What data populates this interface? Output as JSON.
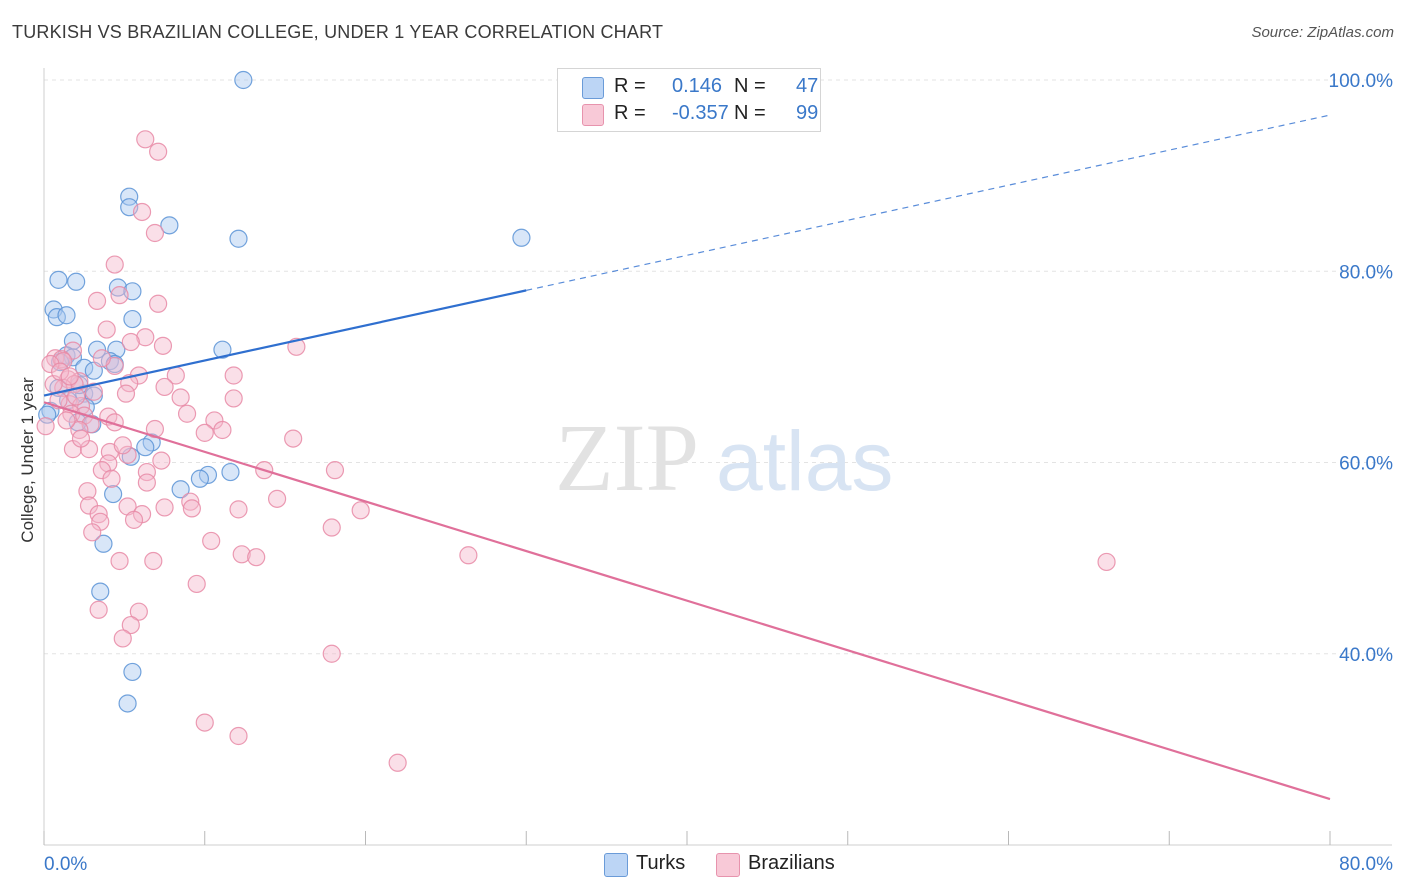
{
  "title": "TURKISH VS BRAZILIAN COLLEGE, UNDER 1 YEAR CORRELATION CHART",
  "source": "Source: ZipAtlas.com",
  "watermark": {
    "part1": "ZIP",
    "part2": "atlas"
  },
  "legend": {
    "rows": [
      {
        "r_label": "R =",
        "r_value": "0.146",
        "n_label": "N =",
        "n_value": "47"
      },
      {
        "r_label": "R =",
        "r_value": "-0.357",
        "n_label": "N =",
        "n_value": "99"
      }
    ]
  },
  "bottom_legend": [
    {
      "label": "Turks"
    },
    {
      "label": "Brazilians"
    }
  ],
  "colors": {
    "turks_fill": "#a8c8f0",
    "turks_stroke": "#5b93d6",
    "turks_line": "#2f6fcf",
    "braz_fill": "#f5b8cb",
    "braz_stroke": "#e889a6",
    "braz_line": "#e0709a",
    "tick_label": "#3a78c9",
    "grid": "#e3e3e3"
  },
  "chart_data": {
    "type": "scatter",
    "title": "TURKISH VS BRAZILIAN COLLEGE, UNDER 1 YEAR CORRELATION CHART",
    "xlabel": "",
    "ylabel": "College, Under 1 year",
    "xlim": [
      0,
      80
    ],
    "ylim": [
      20,
      100
    ],
    "x_tick_labels": [
      {
        "value": 0,
        "label": "0.0%"
      },
      {
        "value": 80,
        "label": "80.0%"
      }
    ],
    "y_tick_labels": [
      {
        "value": 100,
        "label": "100.0%"
      },
      {
        "value": 80,
        "label": "80.0%"
      },
      {
        "value": 60,
        "label": "60.0%"
      },
      {
        "value": 40,
        "label": "40.0%"
      }
    ],
    "series": [
      {
        "name": "Turks",
        "r": 0.146,
        "n": 47,
        "trend": {
          "x0": 0,
          "y0": 67.0,
          "x1": 30,
          "y1": 78.0,
          "extend_to_x": 80
        },
        "points": [
          [
            12.4,
            100.0
          ],
          [
            5.3,
            87.8
          ],
          [
            5.3,
            86.7
          ],
          [
            7.8,
            84.8
          ],
          [
            12.1,
            83.4
          ],
          [
            29.7,
            83.5
          ],
          [
            0.9,
            79.1
          ],
          [
            2.0,
            78.9
          ],
          [
            4.6,
            78.3
          ],
          [
            5.5,
            77.9
          ],
          [
            0.6,
            76.0
          ],
          [
            0.8,
            75.2
          ],
          [
            1.4,
            75.4
          ],
          [
            5.5,
            75.0
          ],
          [
            1.8,
            72.7
          ],
          [
            3.3,
            71.8
          ],
          [
            4.5,
            71.8
          ],
          [
            11.1,
            71.8
          ],
          [
            1.4,
            71.2
          ],
          [
            1.8,
            71.0
          ],
          [
            4.1,
            70.6
          ],
          [
            4.4,
            70.3
          ],
          [
            2.5,
            69.9
          ],
          [
            3.1,
            69.6
          ],
          [
            0.9,
            67.8
          ],
          [
            2.5,
            67.2
          ],
          [
            3.1,
            67.0
          ],
          [
            1.5,
            66.5
          ],
          [
            2.6,
            65.8
          ],
          [
            0.4,
            65.4
          ],
          [
            2.1,
            64.2
          ],
          [
            3.0,
            64.0
          ],
          [
            6.7,
            62.1
          ],
          [
            6.3,
            61.6
          ],
          [
            5.4,
            60.6
          ],
          [
            11.6,
            59.0
          ],
          [
            10.2,
            58.7
          ],
          [
            9.7,
            58.3
          ],
          [
            8.5,
            57.2
          ],
          [
            4.3,
            56.7
          ],
          [
            3.7,
            51.5
          ],
          [
            3.5,
            46.5
          ],
          [
            5.5,
            38.1
          ],
          [
            5.2,
            34.8
          ],
          [
            0.2,
            65.0
          ],
          [
            1.0,
            70.5
          ],
          [
            2.2,
            68.1
          ]
        ]
      },
      {
        "name": "Brazilians",
        "r": -0.357,
        "n": 99,
        "trend": {
          "x0": 0,
          "y0": 66.3,
          "x1": 80,
          "y1": 24.8
        },
        "points": [
          [
            6.3,
            93.8
          ],
          [
            7.1,
            92.5
          ],
          [
            6.1,
            86.2
          ],
          [
            6.9,
            84.0
          ],
          [
            4.4,
            80.7
          ],
          [
            4.7,
            77.5
          ],
          [
            3.3,
            76.9
          ],
          [
            7.1,
            76.6
          ],
          [
            3.9,
            73.9
          ],
          [
            6.3,
            73.1
          ],
          [
            5.4,
            72.6
          ],
          [
            7.4,
            72.2
          ],
          [
            15.7,
            72.1
          ],
          [
            1.8,
            71.7
          ],
          [
            0.7,
            70.9
          ],
          [
            1.1,
            70.8
          ],
          [
            1.2,
            70.6
          ],
          [
            0.4,
            70.3
          ],
          [
            4.4,
            70.1
          ],
          [
            5.9,
            69.1
          ],
          [
            8.2,
            69.1
          ],
          [
            11.8,
            69.1
          ],
          [
            1.5,
            68.7
          ],
          [
            2.2,
            68.5
          ],
          [
            1.9,
            68.2
          ],
          [
            5.3,
            68.3
          ],
          [
            7.5,
            67.9
          ],
          [
            1.2,
            67.8
          ],
          [
            3.1,
            67.4
          ],
          [
            5.1,
            67.2
          ],
          [
            8.5,
            66.8
          ],
          [
            11.8,
            66.7
          ],
          [
            1.6,
            66.1
          ],
          [
            2.3,
            65.9
          ],
          [
            1.7,
            65.1
          ],
          [
            2.5,
            64.9
          ],
          [
            4.0,
            64.8
          ],
          [
            10.6,
            64.4
          ],
          [
            4.4,
            64.2
          ],
          [
            2.9,
            64.0
          ],
          [
            6.9,
            63.5
          ],
          [
            2.2,
            63.4
          ],
          [
            11.1,
            63.4
          ],
          [
            10.0,
            63.1
          ],
          [
            15.5,
            62.5
          ],
          [
            1.8,
            61.4
          ],
          [
            2.8,
            61.4
          ],
          [
            4.1,
            61.1
          ],
          [
            5.2,
            60.8
          ],
          [
            4.0,
            59.9
          ],
          [
            3.6,
            59.2
          ],
          [
            13.7,
            59.2
          ],
          [
            18.1,
            59.2
          ],
          [
            6.4,
            59.0
          ],
          [
            2.7,
            57.0
          ],
          [
            14.5,
            56.2
          ],
          [
            9.1,
            55.9
          ],
          [
            2.8,
            55.5
          ],
          [
            5.2,
            55.4
          ],
          [
            7.5,
            55.3
          ],
          [
            12.1,
            55.1
          ],
          [
            19.7,
            55.0
          ],
          [
            3.4,
            54.6
          ],
          [
            6.1,
            54.6
          ],
          [
            3.5,
            53.8
          ],
          [
            17.9,
            53.2
          ],
          [
            10.4,
            51.8
          ],
          [
            12.3,
            50.4
          ],
          [
            13.2,
            50.1
          ],
          [
            26.4,
            50.3
          ],
          [
            4.7,
            49.7
          ],
          [
            6.8,
            49.7
          ],
          [
            66.1,
            49.6
          ],
          [
            9.5,
            47.3
          ],
          [
            3.4,
            44.6
          ],
          [
            5.9,
            44.4
          ],
          [
            5.4,
            43.0
          ],
          [
            4.9,
            41.6
          ],
          [
            17.9,
            40.0
          ],
          [
            10.0,
            32.8
          ],
          [
            12.1,
            31.4
          ],
          [
            22.0,
            28.6
          ],
          [
            0.1,
            63.8
          ],
          [
            0.6,
            68.2
          ],
          [
            1.0,
            69.5
          ],
          [
            2.0,
            66.9
          ],
          [
            3.6,
            70.9
          ],
          [
            4.9,
            61.8
          ],
          [
            8.9,
            65.1
          ],
          [
            6.4,
            57.9
          ],
          [
            1.4,
            64.4
          ],
          [
            2.3,
            62.5
          ],
          [
            9.2,
            55.2
          ],
          [
            3.0,
            52.7
          ],
          [
            4.2,
            58.3
          ],
          [
            7.3,
            60.2
          ],
          [
            5.6,
            54.0
          ],
          [
            1.6,
            69.0
          ],
          [
            0.9,
            66.5
          ]
        ]
      }
    ]
  }
}
